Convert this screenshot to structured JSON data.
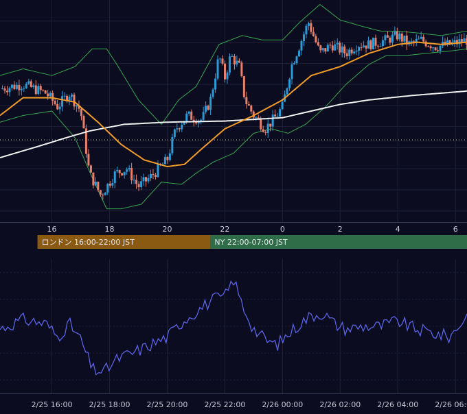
{
  "colors": {
    "background": "#0b0c1f",
    "grid": "#1e2138",
    "candle_up": "#2b9bd8",
    "candle_down": "#e8806b",
    "bollinger": "#34a853",
    "ma_short": "#f39c26",
    "ma_long": "#f2f2f2",
    "oscillator": "#5b63e8",
    "reference_line": "#d0d0d0",
    "session_tokyo": "#1f4e7c",
    "session_london": "#8a5a12",
    "session_ny": "#2e6d47"
  },
  "sessions": [
    {
      "name": "tokyo",
      "label": "",
      "start": -0.2,
      "end": 9.5
    },
    {
      "name": "london",
      "label": "ロンドン 16:00-22:00 JST",
      "start": 15.5,
      "end": 21.5
    },
    {
      "name": "ny",
      "label": "NY 22:00-07:00 JST",
      "start": 21.5,
      "end": 30.5
    }
  ],
  "chart_data": [
    {
      "type": "candlestick",
      "x_ticks": [
        "16",
        "18",
        "20",
        "22",
        "0",
        "2",
        "4",
        "6"
      ],
      "x_tick_hours": [
        16,
        18,
        20,
        22,
        24,
        26,
        28,
        30
      ],
      "xlim": [
        14.2,
        30.4
      ],
      "ylim": [
        0,
        100
      ],
      "reference_level": 37,
      "price_anchors": [
        [
          14.2,
          60
        ],
        [
          15.0,
          62
        ],
        [
          15.8,
          58
        ],
        [
          16.2,
          52
        ],
        [
          16.6,
          58
        ],
        [
          17.0,
          50
        ],
        [
          17.3,
          22
        ],
        [
          17.7,
          12
        ],
        [
          18.2,
          22
        ],
        [
          18.6,
          24
        ],
        [
          19.0,
          16
        ],
        [
          19.4,
          20
        ],
        [
          19.7,
          24
        ],
        [
          20.0,
          28
        ],
        [
          20.3,
          42
        ],
        [
          20.7,
          48
        ],
        [
          21.2,
          46
        ],
        [
          21.5,
          55
        ],
        [
          21.8,
          75
        ],
        [
          22.0,
          65
        ],
        [
          22.2,
          75
        ],
        [
          22.5,
          70
        ],
        [
          22.7,
          55
        ],
        [
          23.0,
          48
        ],
        [
          23.4,
          42
        ],
        [
          23.8,
          48
        ],
        [
          24.0,
          52
        ],
        [
          24.3,
          70
        ],
        [
          24.6,
          80
        ],
        [
          24.9,
          90
        ],
        [
          25.3,
          76
        ],
        [
          25.7,
          80
        ],
        [
          26.2,
          76
        ],
        [
          26.6,
          80
        ],
        [
          27.0,
          80
        ],
        [
          27.6,
          82
        ],
        [
          28.0,
          84
        ],
        [
          28.4,
          80
        ],
        [
          28.8,
          82
        ],
        [
          29.3,
          79
        ],
        [
          29.8,
          80
        ],
        [
          30.4,
          82
        ]
      ],
      "ma_short": [
        [
          14.2,
          48
        ],
        [
          15.0,
          56
        ],
        [
          16.0,
          56
        ],
        [
          16.8,
          54
        ],
        [
          17.6,
          45
        ],
        [
          18.4,
          35
        ],
        [
          19.2,
          28
        ],
        [
          20.0,
          25
        ],
        [
          20.6,
          26
        ],
        [
          21.2,
          33
        ],
        [
          22.0,
          42
        ],
        [
          23.0,
          48
        ],
        [
          24.0,
          55
        ],
        [
          25.0,
          66
        ],
        [
          26.0,
          70
        ],
        [
          27.0,
          76
        ],
        [
          28.0,
          80
        ],
        [
          28.7,
          81
        ],
        [
          29.5,
          80
        ],
        [
          30.4,
          81
        ]
      ],
      "ma_long": [
        [
          14.2,
          29
        ],
        [
          15.5,
          34
        ],
        [
          16.5,
          38
        ],
        [
          17.3,
          41
        ],
        [
          18.5,
          44
        ],
        [
          20.0,
          45
        ],
        [
          22.0,
          45.5
        ],
        [
          24.0,
          47
        ],
        [
          25.0,
          50
        ],
        [
          26.0,
          53
        ],
        [
          27.0,
          55
        ],
        [
          28.5,
          57
        ],
        [
          30.4,
          59
        ]
      ],
      "band_upper": [
        [
          14.2,
          66
        ],
        [
          15.0,
          69
        ],
        [
          16.0,
          66
        ],
        [
          16.8,
          70
        ],
        [
          17.4,
          78
        ],
        [
          17.9,
          78
        ],
        [
          18.3,
          70
        ],
        [
          19.0,
          55
        ],
        [
          19.8,
          44
        ],
        [
          20.4,
          55
        ],
        [
          21.0,
          61
        ],
        [
          21.8,
          80
        ],
        [
          22.6,
          84
        ],
        [
          23.3,
          82
        ],
        [
          24.0,
          82
        ],
        [
          24.6,
          90
        ],
        [
          25.3,
          98
        ],
        [
          26.0,
          91
        ],
        [
          26.8,
          88
        ],
        [
          27.4,
          86
        ],
        [
          28.0,
          86
        ],
        [
          28.8,
          85
        ],
        [
          29.5,
          84
        ],
        [
          30.4,
          86
        ]
      ],
      "band_lower": [
        [
          14.2,
          45
        ],
        [
          15.0,
          48
        ],
        [
          16.0,
          50
        ],
        [
          16.8,
          38
        ],
        [
          17.4,
          20
        ],
        [
          17.9,
          6
        ],
        [
          18.4,
          6
        ],
        [
          19.1,
          8
        ],
        [
          19.8,
          18
        ],
        [
          20.5,
          17
        ],
        [
          21.0,
          22
        ],
        [
          21.6,
          27
        ],
        [
          22.3,
          31
        ],
        [
          23.0,
          40
        ],
        [
          23.6,
          42
        ],
        [
          24.2,
          40
        ],
        [
          24.8,
          44
        ],
        [
          25.5,
          52
        ],
        [
          26.2,
          62
        ],
        [
          27.0,
          71
        ],
        [
          27.6,
          75
        ],
        [
          28.3,
          75
        ],
        [
          29.0,
          76
        ],
        [
          29.8,
          77
        ],
        [
          30.4,
          78
        ]
      ]
    },
    {
      "type": "line",
      "x_ticks": [
        "2/25 16:00",
        "2/25 18:00",
        "2/25 20:00",
        "2/25 22:00",
        "2/26 00:00",
        "2/26 02:00",
        "2/26 04:00",
        "2/26 06:00"
      ],
      "x_tick_hours": [
        16,
        18,
        20,
        22,
        24,
        26,
        28,
        30
      ],
      "xlim": [
        14.2,
        30.4
      ],
      "ylim": [
        0,
        100
      ],
      "anchors": [
        [
          14.2,
          48
        ],
        [
          15.0,
          55
        ],
        [
          15.8,
          52
        ],
        [
          16.2,
          42
        ],
        [
          16.6,
          52
        ],
        [
          17.0,
          40
        ],
        [
          17.4,
          18
        ],
        [
          17.8,
          16
        ],
        [
          18.3,
          26
        ],
        [
          18.8,
          30
        ],
        [
          19.4,
          36
        ],
        [
          20.0,
          42
        ],
        [
          20.6,
          55
        ],
        [
          21.2,
          64
        ],
        [
          21.6,
          70
        ],
        [
          22.0,
          72
        ],
        [
          22.3,
          85
        ],
        [
          22.6,
          66
        ],
        [
          23.0,
          48
        ],
        [
          23.4,
          40
        ],
        [
          23.8,
          36
        ],
        [
          24.2,
          44
        ],
        [
          24.6,
          52
        ],
        [
          25.0,
          58
        ],
        [
          25.4,
          60
        ],
        [
          25.8,
          52
        ],
        [
          26.2,
          48
        ],
        [
          26.8,
          50
        ],
        [
          27.4,
          50
        ],
        [
          28.0,
          54
        ],
        [
          28.6,
          48
        ],
        [
          29.2,
          45
        ],
        [
          29.8,
          42
        ],
        [
          30.4,
          58
        ]
      ]
    }
  ]
}
